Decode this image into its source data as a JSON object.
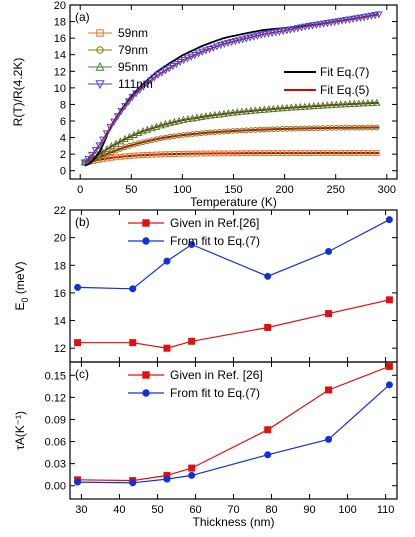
{
  "chart_data": [
    {
      "type": "scatter",
      "panel_label": "(a)",
      "xlabel": "Temperature (K)",
      "ylabel": "R(T)/R(4.2K)",
      "xlim": [
        -10,
        310
      ],
      "ylim": [
        -1,
        20
      ],
      "xticks": [
        0,
        50,
        100,
        150,
        200,
        250,
        300
      ],
      "yticks": [
        0,
        2,
        4,
        6,
        8,
        10,
        12,
        14,
        16,
        18,
        20
      ],
      "series": [
        {
          "name": "59nm",
          "color": "#e07a1f",
          "marker": "square",
          "x": [
            4.2,
            10,
            20,
            30,
            45,
            60,
            80,
            100,
            125,
            150,
            175,
            200,
            225,
            250,
            275,
            293
          ],
          "y": [
            1.0,
            1.1,
            1.35,
            1.55,
            1.75,
            1.88,
            1.98,
            2.04,
            2.08,
            2.1,
            2.12,
            2.13,
            2.13,
            2.14,
            2.14,
            2.14
          ]
        },
        {
          "name": "79nm",
          "color": "#8a7a10",
          "marker": "circle",
          "x": [
            4.2,
            10,
            20,
            30,
            45,
            60,
            80,
            100,
            125,
            150,
            175,
            200,
            225,
            250,
            275,
            293
          ],
          "y": [
            1.0,
            1.2,
            1.7,
            2.2,
            2.9,
            3.4,
            3.95,
            4.3,
            4.6,
            4.8,
            4.95,
            5.05,
            5.12,
            5.17,
            5.2,
            5.22
          ]
        },
        {
          "name": "95nm",
          "color": "#3a8a2a",
          "marker": "triangle-up",
          "x": [
            4.2,
            10,
            20,
            30,
            45,
            60,
            80,
            100,
            125,
            150,
            175,
            200,
            225,
            250,
            275,
            293
          ],
          "y": [
            1.0,
            1.4,
            2.1,
            2.9,
            3.9,
            4.7,
            5.5,
            6.1,
            6.6,
            7.0,
            7.3,
            7.55,
            7.75,
            7.95,
            8.1,
            8.2
          ]
        },
        {
          "name": "111nm",
          "color": "#4646d8",
          "marker": "triangle-down",
          "x": [
            4.2,
            10,
            20,
            30,
            40,
            50,
            60,
            75,
            90,
            100,
            120,
            140,
            160,
            180,
            200,
            220,
            240,
            260,
            280,
            293
          ],
          "y": [
            1.0,
            1.7,
            3.3,
            5.4,
            7.2,
            8.8,
            10.0,
            11.5,
            12.6,
            13.3,
            14.4,
            15.3,
            15.9,
            16.5,
            16.9,
            17.4,
            17.8,
            18.2,
            18.6,
            18.9
          ]
        }
      ],
      "fits": [
        {
          "name": "Fit Eq.(7)",
          "color": "#000000"
        },
        {
          "name": "Fit Eq.(5)",
          "color": "#e00000"
        }
      ]
    },
    {
      "type": "line",
      "panel_label": "(b)",
      "ylabel": "E0 (meV)",
      "xlim": [
        27,
        113
      ],
      "ylim": [
        11,
        22
      ],
      "xticks": [
        30,
        40,
        50,
        60,
        70,
        80,
        90,
        100,
        110
      ],
      "yticks": [
        12,
        14,
        16,
        18,
        20,
        22
      ],
      "series": [
        {
          "name": "Given in Ref.[26]",
          "color": "#e01010",
          "marker": "square",
          "x": [
            29,
            43.5,
            52.5,
            59,
            79,
            95,
            111
          ],
          "y": [
            12.4,
            12.4,
            12.0,
            12.5,
            13.5,
            14.5,
            15.5
          ]
        },
        {
          "name": "From fit to Eq.(7)",
          "color": "#1030e0",
          "marker": "circle",
          "x": [
            29,
            43.5,
            52.5,
            59,
            79,
            95,
            111
          ],
          "y": [
            16.4,
            16.3,
            18.3,
            19.5,
            17.2,
            19.0,
            21.3
          ]
        }
      ]
    },
    {
      "type": "line",
      "panel_label": "(c)",
      "xlabel": "Thickness (nm)",
      "ylabel": "τA(K⁻¹)",
      "xlim": [
        27,
        113
      ],
      "ylim": [
        -0.018,
        0.168
      ],
      "xticks": [
        30,
        40,
        50,
        60,
        70,
        80,
        90,
        100,
        110
      ],
      "yticks": [
        0.0,
        0.03,
        0.06,
        0.09,
        0.12,
        0.15
      ],
      "ytick_labels": [
        "0.00",
        "0.03",
        "0.06",
        "0.09",
        "0.12",
        "0.15"
      ],
      "series": [
        {
          "name": "Given in Ref. [26]",
          "color": "#e01010",
          "marker": "square",
          "x": [
            29,
            43.5,
            52.5,
            59,
            79,
            95,
            111
          ],
          "y": [
            0.008,
            0.007,
            0.014,
            0.024,
            0.076,
            0.13,
            0.162
          ]
        },
        {
          "name": "From fit to Eq.(7)",
          "color": "#1030e0",
          "marker": "circle",
          "x": [
            29,
            43.5,
            52.5,
            59,
            79,
            95,
            111
          ],
          "y": [
            0.005,
            0.004,
            0.009,
            0.014,
            0.042,
            0.063,
            0.137
          ]
        }
      ]
    }
  ]
}
